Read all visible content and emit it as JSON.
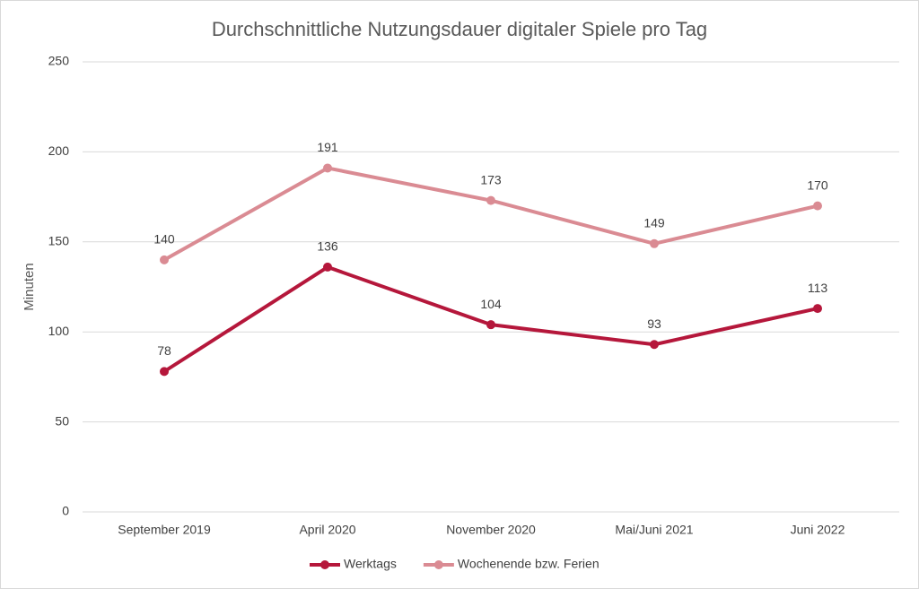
{
  "chart_data": {
    "type": "line",
    "title": "Durchschnittliche Nutzungsdauer digitaler Spiele pro Tag",
    "y_label": "Minuten",
    "categories": [
      "September 2019",
      "April 2020",
      "November 2020",
      "Mai/Juni 2021",
      "Juni 2022"
    ],
    "series": [
      {
        "name": "Werktags",
        "color": "#b5173b",
        "values": [
          78,
          136,
          104,
          93,
          113
        ]
      },
      {
        "name": "Wochenende bzw. Ferien",
        "color": "#da8b93",
        "values": [
          140,
          191,
          173,
          149,
          170
        ]
      }
    ],
    "ylim": [
      0,
      250
    ],
    "yticks": [
      0,
      50,
      100,
      150,
      200,
      250
    ],
    "grid": true,
    "legend": "bottom"
  }
}
